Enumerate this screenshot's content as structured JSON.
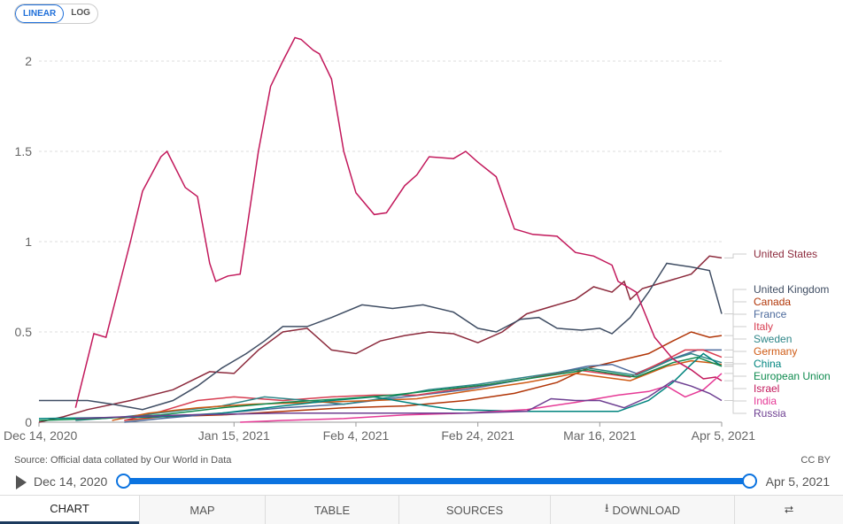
{
  "scale_toggle": {
    "linear": "LINEAR",
    "log": "LOG",
    "selected": "LINEAR"
  },
  "chart_data": {
    "type": "line",
    "title": "",
    "x_unit": "days since Dec 14, 2020",
    "xlim": [
      0,
      112
    ],
    "ylim": [
      0,
      2.2
    ],
    "grid": true,
    "y_ticks": [
      {
        "v": 0,
        "label": "0"
      },
      {
        "v": 0.5,
        "label": "0.5"
      },
      {
        "v": 1,
        "label": "1"
      },
      {
        "v": 1.5,
        "label": "1.5"
      },
      {
        "v": 2,
        "label": "2"
      }
    ],
    "x_ticks": [
      {
        "v": 0,
        "label": "Dec 14, 2020"
      },
      {
        "v": 32,
        "label": "Jan 15, 2021"
      },
      {
        "v": 52,
        "label": "Feb 4, 2021"
      },
      {
        "v": 72,
        "label": "Feb 24, 2021"
      },
      {
        "v": 92,
        "label": "Mar 16, 2021"
      },
      {
        "v": 112,
        "label": "Apr 5, 2021"
      }
    ],
    "legend_placement": "right",
    "series": [
      {
        "name": "United States",
        "color": "#8c2a3c",
        "labelY": 0.91,
        "points": [
          [
            0,
            0
          ],
          [
            4,
            0.03
          ],
          [
            8,
            0.07
          ],
          [
            15,
            0.12
          ],
          [
            22,
            0.18
          ],
          [
            28,
            0.28
          ],
          [
            32,
            0.27
          ],
          [
            36,
            0.4
          ],
          [
            40,
            0.5
          ],
          [
            44,
            0.52
          ],
          [
            48,
            0.4
          ],
          [
            52,
            0.38
          ],
          [
            56,
            0.45
          ],
          [
            60,
            0.48
          ],
          [
            64,
            0.5
          ],
          [
            68,
            0.49
          ],
          [
            72,
            0.44
          ],
          [
            76,
            0.5
          ],
          [
            80,
            0.6
          ],
          [
            84,
            0.64
          ],
          [
            88,
            0.68
          ],
          [
            91,
            0.75
          ],
          [
            94,
            0.72
          ],
          [
            96,
            0.78
          ],
          [
            97,
            0.68
          ],
          [
            99,
            0.74
          ],
          [
            103,
            0.78
          ],
          [
            107,
            0.82
          ],
          [
            110,
            0.92
          ],
          [
            112,
            0.91
          ]
        ]
      },
      {
        "name": "United Kingdom",
        "color": "#3f4d63",
        "labelY": 0.71,
        "points": [
          [
            0,
            0.12
          ],
          [
            8,
            0.12
          ],
          [
            12,
            0.1
          ],
          [
            17,
            0.07
          ],
          [
            22,
            0.12
          ],
          [
            26,
            0.2
          ],
          [
            30,
            0.3
          ],
          [
            34,
            0.38
          ],
          [
            37,
            0.45
          ],
          [
            40,
            0.53
          ],
          [
            44,
            0.53
          ],
          [
            48,
            0.58
          ],
          [
            53,
            0.65
          ],
          [
            58,
            0.63
          ],
          [
            63,
            0.65
          ],
          [
            68,
            0.61
          ],
          [
            72,
            0.52
          ],
          [
            75,
            0.5
          ],
          [
            79,
            0.57
          ],
          [
            82,
            0.58
          ],
          [
            85,
            0.52
          ],
          [
            89,
            0.51
          ],
          [
            92,
            0.52
          ],
          [
            94,
            0.49
          ],
          [
            97,
            0.58
          ],
          [
            100,
            0.72
          ],
          [
            103,
            0.88
          ],
          [
            107,
            0.86
          ],
          [
            110,
            0.84
          ],
          [
            112,
            0.6
          ]
        ]
      },
      {
        "name": "Canada",
        "color": "#b13507",
        "labelY": 0.64,
        "points": [
          [
            14,
            0.01
          ],
          [
            20,
            0.03
          ],
          [
            30,
            0.04
          ],
          [
            40,
            0.06
          ],
          [
            50,
            0.08
          ],
          [
            60,
            0.09
          ],
          [
            70,
            0.12
          ],
          [
            78,
            0.16
          ],
          [
            85,
            0.22
          ],
          [
            90,
            0.3
          ],
          [
            95,
            0.34
          ],
          [
            100,
            0.38
          ],
          [
            104,
            0.45
          ],
          [
            107,
            0.5
          ],
          [
            110,
            0.47
          ],
          [
            112,
            0.48
          ]
        ]
      },
      {
        "name": "France",
        "color": "#4c6a9c",
        "labelY": 0.57,
        "points": [
          [
            14,
            0
          ],
          [
            20,
            0.02
          ],
          [
            30,
            0.05
          ],
          [
            40,
            0.08
          ],
          [
            50,
            0.1
          ],
          [
            60,
            0.14
          ],
          [
            70,
            0.18
          ],
          [
            80,
            0.24
          ],
          [
            90,
            0.31
          ],
          [
            94,
            0.32
          ],
          [
            98,
            0.27
          ],
          [
            103,
            0.34
          ],
          [
            108,
            0.4
          ],
          [
            112,
            0.4
          ]
        ]
      },
      {
        "name": "Italy",
        "color": "#d73c50",
        "labelY": 0.5,
        "points": [
          [
            14,
            0.01
          ],
          [
            20,
            0.06
          ],
          [
            26,
            0.12
          ],
          [
            32,
            0.14
          ],
          [
            40,
            0.12
          ],
          [
            48,
            0.14
          ],
          [
            55,
            0.15
          ],
          [
            62,
            0.15
          ],
          [
            70,
            0.19
          ],
          [
            80,
            0.24
          ],
          [
            88,
            0.29
          ],
          [
            97,
            0.25
          ],
          [
            102,
            0.33
          ],
          [
            106,
            0.4
          ],
          [
            109,
            0.4
          ],
          [
            112,
            0.36
          ]
        ]
      },
      {
        "name": "Sweden",
        "color": "#2d8587",
        "labelY": 0.43,
        "points": [
          [
            6,
            0.01
          ],
          [
            14,
            0.03
          ],
          [
            22,
            0.06
          ],
          [
            30,
            0.09
          ],
          [
            37,
            0.14
          ],
          [
            44,
            0.12
          ],
          [
            50,
            0.1
          ],
          [
            56,
            0.13
          ],
          [
            64,
            0.18
          ],
          [
            72,
            0.21
          ],
          [
            80,
            0.25
          ],
          [
            90,
            0.3
          ],
          [
            98,
            0.26
          ],
          [
            104,
            0.35
          ],
          [
            107,
            0.38
          ],
          [
            112,
            0.33
          ]
        ]
      },
      {
        "name": "Germany",
        "color": "#cf5a14",
        "labelY": 0.36,
        "points": [
          [
            12,
            0.01
          ],
          [
            18,
            0.05
          ],
          [
            26,
            0.08
          ],
          [
            35,
            0.1
          ],
          [
            45,
            0.11
          ],
          [
            55,
            0.12
          ],
          [
            62,
            0.13
          ],
          [
            70,
            0.17
          ],
          [
            80,
            0.22
          ],
          [
            88,
            0.27
          ],
          [
            97,
            0.23
          ],
          [
            103,
            0.31
          ],
          [
            107,
            0.34
          ],
          [
            110,
            0.33
          ],
          [
            112,
            0.32
          ]
        ]
      },
      {
        "name": "China",
        "color": "#00847e",
        "labelY": 0.29,
        "points": [
          [
            0,
            0.02
          ],
          [
            20,
            0.03
          ],
          [
            30,
            0.05
          ],
          [
            40,
            0.09
          ],
          [
            48,
            0.12
          ],
          [
            55,
            0.14
          ],
          [
            62,
            0.1
          ],
          [
            68,
            0.07
          ],
          [
            80,
            0.06
          ],
          [
            95,
            0.06
          ],
          [
            100,
            0.12
          ],
          [
            104,
            0.22
          ],
          [
            107,
            0.32
          ],
          [
            109,
            0.38
          ],
          [
            112,
            0.31
          ]
        ]
      },
      {
        "name": "European Union",
        "color": "#0f8b4f",
        "labelY": 0.22,
        "points": [
          [
            0,
            0.01
          ],
          [
            10,
            0.02
          ],
          [
            20,
            0.04
          ],
          [
            30,
            0.08
          ],
          [
            40,
            0.11
          ],
          [
            50,
            0.13
          ],
          [
            58,
            0.15
          ],
          [
            66,
            0.18
          ],
          [
            74,
            0.21
          ],
          [
            82,
            0.25
          ],
          [
            90,
            0.29
          ],
          [
            98,
            0.25
          ],
          [
            104,
            0.33
          ],
          [
            108,
            0.36
          ],
          [
            112,
            0.31
          ]
        ]
      },
      {
        "name": "Israel",
        "color": "#c2185b",
        "labelY": 0.15,
        "points": [
          [
            6,
            0.08
          ],
          [
            9,
            0.49
          ],
          [
            11,
            0.47
          ],
          [
            15,
            1.0
          ],
          [
            17,
            1.28
          ],
          [
            20,
            1.47
          ],
          [
            21,
            1.5
          ],
          [
            24,
            1.3
          ],
          [
            26,
            1.25
          ],
          [
            28,
            0.88
          ],
          [
            29,
            0.78
          ],
          [
            31,
            0.81
          ],
          [
            33,
            0.82
          ],
          [
            36,
            1.5
          ],
          [
            38,
            1.86
          ],
          [
            40,
            2.0
          ],
          [
            42,
            2.13
          ],
          [
            43,
            2.12
          ],
          [
            45,
            2.06
          ],
          [
            46,
            2.04
          ],
          [
            48,
            1.9
          ],
          [
            50,
            1.5
          ],
          [
            52,
            1.27
          ],
          [
            55,
            1.15
          ],
          [
            57,
            1.16
          ],
          [
            60,
            1.31
          ],
          [
            62,
            1.37
          ],
          [
            64,
            1.47
          ],
          [
            68,
            1.46
          ],
          [
            70,
            1.5
          ],
          [
            72,
            1.44
          ],
          [
            75,
            1.36
          ],
          [
            78,
            1.07
          ],
          [
            81,
            1.04
          ],
          [
            85,
            1.03
          ],
          [
            88,
            0.94
          ],
          [
            91,
            0.92
          ],
          [
            94,
            0.87
          ],
          [
            95,
            0.78
          ],
          [
            98,
            0.72
          ],
          [
            101,
            0.47
          ],
          [
            104,
            0.35
          ],
          [
            107,
            0.29
          ],
          [
            109,
            0.24
          ],
          [
            111,
            0.25
          ],
          [
            112,
            0.23
          ]
        ]
      },
      {
        "name": "India",
        "color": "#e63a96",
        "labelY": 0.08,
        "points": [
          [
            33,
            0
          ],
          [
            40,
            0.01
          ],
          [
            50,
            0.02
          ],
          [
            60,
            0.04
          ],
          [
            70,
            0.05
          ],
          [
            80,
            0.07
          ],
          [
            88,
            0.11
          ],
          [
            95,
            0.15
          ],
          [
            100,
            0.17
          ],
          [
            103,
            0.2
          ],
          [
            106,
            0.14
          ],
          [
            109,
            0.18
          ],
          [
            112,
            0.27
          ]
        ]
      },
      {
        "name": "Russia",
        "color": "#6d3e91",
        "labelY": 0.01,
        "points": [
          [
            6,
            0.02
          ],
          [
            14,
            0.03
          ],
          [
            24,
            0.04
          ],
          [
            40,
            0.05
          ],
          [
            55,
            0.05
          ],
          [
            70,
            0.05
          ],
          [
            80,
            0.06
          ],
          [
            84,
            0.13
          ],
          [
            88,
            0.12
          ],
          [
            92,
            0.12
          ],
          [
            96,
            0.08
          ],
          [
            100,
            0.14
          ],
          [
            104,
            0.23
          ],
          [
            107,
            0.2
          ],
          [
            110,
            0.16
          ],
          [
            112,
            0.12
          ]
        ]
      }
    ]
  },
  "source": "Source: Official data collated by Our World in Data",
  "license": "CC BY",
  "timeline": {
    "start": "Dec 14, 2020",
    "end": "Apr 5, 2021"
  },
  "tabs": [
    {
      "label": "CHART"
    },
    {
      "label": "MAP"
    },
    {
      "label": "TABLE"
    },
    {
      "label": "SOURCES"
    },
    {
      "label": "DOWNLOAD"
    },
    {
      "label": ""
    }
  ]
}
